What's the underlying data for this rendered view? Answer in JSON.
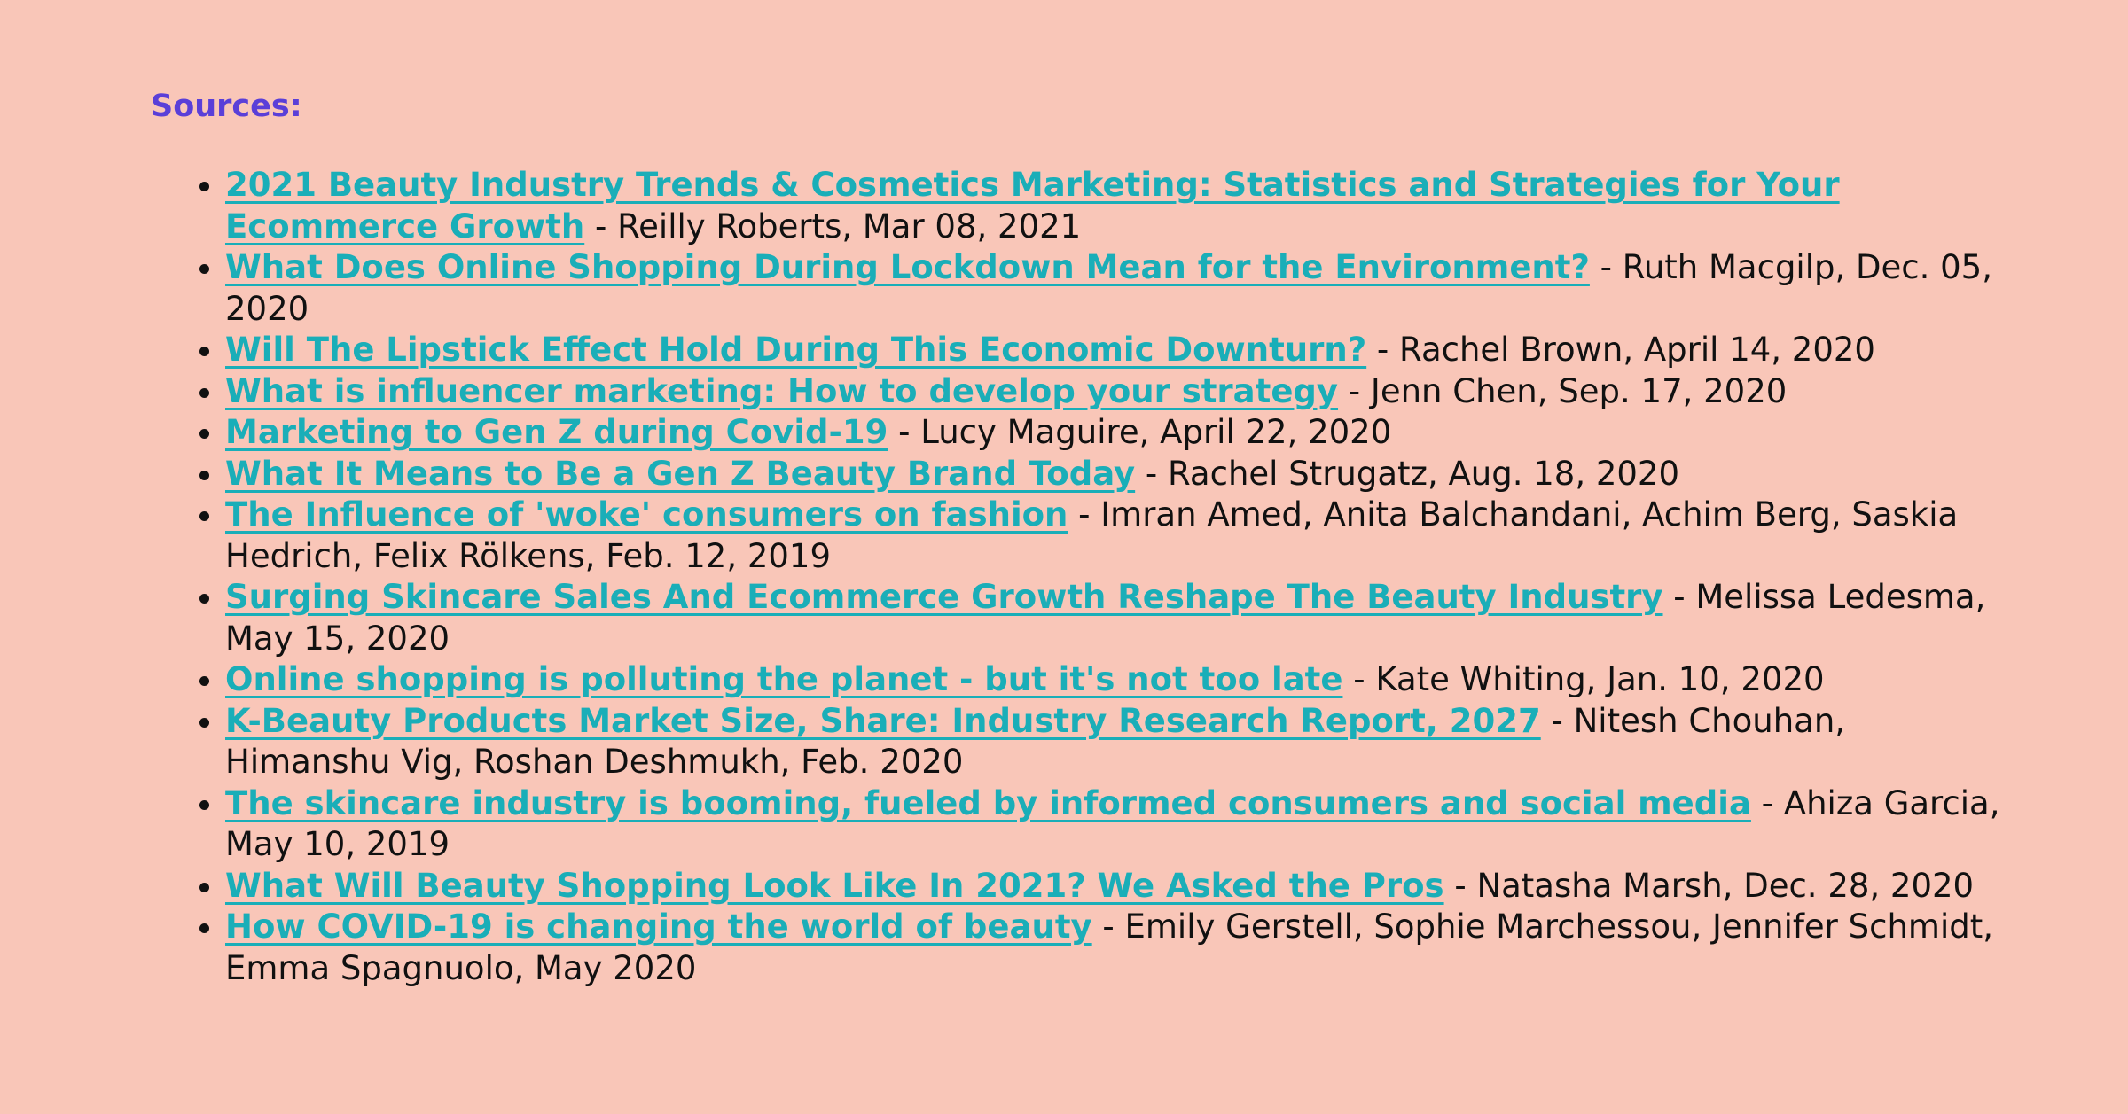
{
  "heading": "Sources:",
  "colors": {
    "background": "#f9c6b8",
    "heading": "#5a3fd8",
    "link": "#1aaeb8",
    "text": "#111111"
  },
  "sources": [
    {
      "title": "2021 Beauty Industry Trends & Cosmetics Marketing: Statistics and Strategies for Your Ecommerce Growth",
      "credit": " - Reilly Roberts, Mar 08, 2021"
    },
    {
      "title": "What Does Online Shopping During Lockdown Mean for the Environment?",
      "credit": " - Ruth Macgilp, Dec. 05, 2020"
    },
    {
      "title": "Will The Lipstick Effect Hold During This Economic Downturn?",
      "credit": " - Rachel Brown, April 14, 2020"
    },
    {
      "title": "What is influencer marketing: How to develop your strategy",
      "credit": " - Jenn Chen, Sep. 17, 2020"
    },
    {
      "title": "Marketing to Gen Z during Covid-19",
      "credit": " - Lucy Maguire, April 22, 2020"
    },
    {
      "title": "What It Means to Be a Gen Z Beauty Brand Today",
      "credit": " - Rachel Strugatz, Aug. 18, 2020"
    },
    {
      "title": "The Influence of 'woke' consumers on fashion",
      "credit": " - Imran Amed, Anita Balchandani, Achim Berg, Saskia Hedrich, Felix Rölkens, Feb. 12, 2019"
    },
    {
      "title": "Surging Skincare Sales And Ecommerce Growth Reshape The Beauty Industry",
      "credit": " - Melissa Ledesma, May 15, 2020"
    },
    {
      "title": "Online shopping is polluting the planet - but it's not too late",
      "credit": " - Kate Whiting, Jan. 10, 2020"
    },
    {
      "title": "K-Beauty Products Market Size, Share: Industry Research Report, 2027",
      "credit": " - Nitesh Chouhan, Himanshu Vig, Roshan Deshmukh, Feb. 2020"
    },
    {
      "title": "The skincare industry is booming, fueled by informed consumers and social media",
      "credit": " - Ahiza Garcia, May 10, 2019"
    },
    {
      "title": "What Will Beauty Shopping Look Like In 2021? We Asked the Pros",
      "credit": " - Natasha Marsh, Dec. 28, 2020"
    },
    {
      "title": "How COVID-19 is changing the world of beauty",
      "credit": " - Emily Gerstell, Sophie Marchessou, Jennifer Schmidt, Emma Spagnuolo, May 2020"
    }
  ]
}
